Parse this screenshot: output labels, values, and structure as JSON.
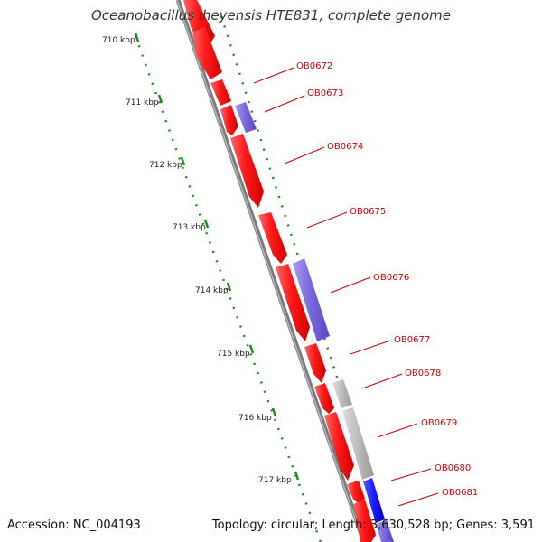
{
  "title": "Oceanobacillus iheyensis HTE831, complete genome",
  "accession": "Accession: NC_004193",
  "summary": "Topology: circular; Length: 3,630,528 bp; Genes: 3,591",
  "kbp_labels": [
    "710 kbp",
    "711 kbp",
    "712 kbp",
    "713 kbp",
    "714 kbp",
    "715 kbp",
    "716 kbp",
    "717 kbp"
  ],
  "genes": [
    "OB0672",
    "OB0673",
    "OB0674",
    "OB0675",
    "OB0676",
    "OB0677",
    "OB0678",
    "OB0679",
    "OB0680",
    "OB0681"
  ],
  "colors": {
    "forward_gene": "#ff1a1a",
    "reverse_gene": "#7766dd",
    "other_gene": "#bbbbbb",
    "blue_gene": "#1a1aff",
    "backbone": "#808080",
    "ticks": "#228b22",
    "label": "#cc0000"
  }
}
